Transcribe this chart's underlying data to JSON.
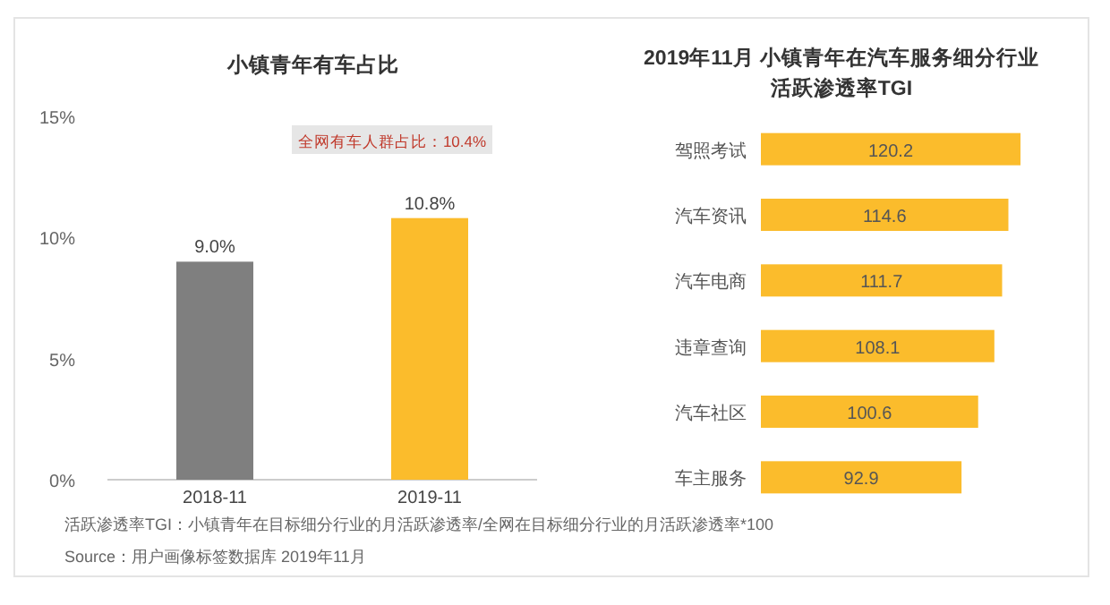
{
  "chart_data": [
    {
      "type": "bar",
      "title": "小镇青年有车占比",
      "categories": [
        "2018-11",
        "2019-11"
      ],
      "values": [
        9.0,
        10.8
      ],
      "colors": [
        "#7f7f7f",
        "#fbbc2c"
      ],
      "value_labels": [
        "9.0%",
        "10.8%"
      ],
      "ylim": [
        0,
        15
      ],
      "yticks": [
        {
          "value": 0,
          "label": "0%"
        },
        {
          "value": 5,
          "label": "5%"
        },
        {
          "value": 10,
          "label": "10%"
        },
        {
          "value": 15,
          "label": "15%"
        }
      ],
      "annotations": [
        "全网有车人群占比：10.4%",
        "活跃渗透率TGI：小镇青年在目标细分行业的月活跃渗透率/全网在目标细分行业的月活跃渗透率*100",
        "Source：用户画像标签数据库 2019年11月"
      ]
    },
    {
      "type": "bar",
      "orientation": "horizontal",
      "title": "2019年11月 小镇青年在汽车服务细分行业",
      "subtitle": "活跃渗透率TGI",
      "categories": [
        "驾照考试",
        "汽车资讯",
        "汽车电商",
        "违章查询",
        "汽车社区",
        "车主服务"
      ],
      "values": [
        120.2,
        114.6,
        111.7,
        108.1,
        100.6,
        92.9
      ],
      "color": "#fbbc2c",
      "data_labels": true
    }
  ]
}
